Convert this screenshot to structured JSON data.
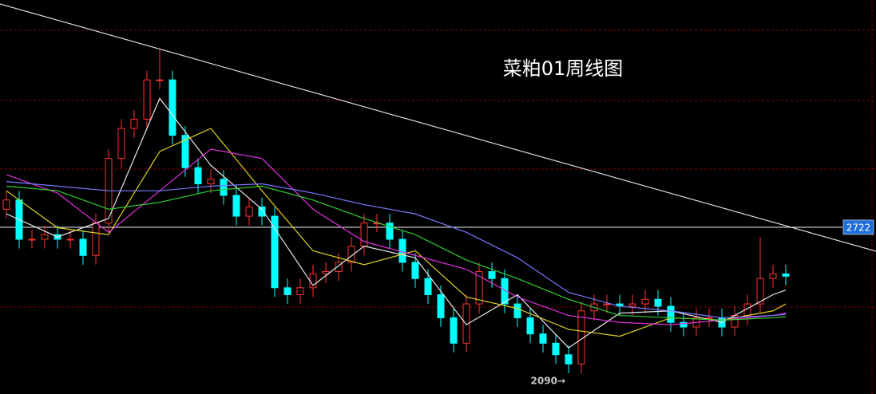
{
  "chart_data": {
    "type": "candlestick",
    "title": "菜粕01周线图",
    "ylim": [
      2000,
      3706
    ],
    "up_color": "#ff3232",
    "down_color": "#00ffff",
    "open": [
      2800,
      2840,
      2670,
      2670,
      2690,
      2670,
      2670,
      2600,
      2740,
      3020,
      3150,
      3190,
      3360,
      3360,
      3120,
      2980,
      2910,
      2930,
      2860,
      2770,
      2810,
      2770,
      2460,
      2430,
      2460,
      2520,
      2530,
      2570,
      2640,
      2740,
      2740,
      2670,
      2570,
      2500,
      2430,
      2330,
      2220,
      2390,
      2530,
      2500,
      2390,
      2330,
      2260,
      2220,
      2170,
      2130,
      2360,
      2390,
      2390,
      2380,
      2390,
      2410,
      2380,
      2310,
      2290,
      2330,
      2330,
      2290,
      2340,
      2390,
      2500,
      2520
    ],
    "high": [
      2880,
      2880,
      2710,
      2730,
      2730,
      2710,
      2710,
      2780,
      3060,
      3190,
      3230,
      3400,
      3490,
      3400,
      3160,
      3020,
      2970,
      2970,
      2900,
      2850,
      2850,
      2810,
      2500,
      2500,
      2560,
      2570,
      2610,
      2680,
      2780,
      2780,
      2780,
      2710,
      2610,
      2540,
      2470,
      2370,
      2430,
      2570,
      2570,
      2540,
      2430,
      2370,
      2300,
      2260,
      2210,
      2400,
      2430,
      2430,
      2430,
      2430,
      2450,
      2450,
      2420,
      2350,
      2370,
      2370,
      2370,
      2380,
      2430,
      2680,
      2560,
      2560
    ],
    "low": [
      2760,
      2630,
      2630,
      2630,
      2630,
      2630,
      2560,
      2560,
      2700,
      2980,
      3110,
      3150,
      3320,
      3080,
      2940,
      2870,
      2870,
      2820,
      2730,
      2730,
      2730,
      2420,
      2390,
      2390,
      2420,
      2480,
      2490,
      2530,
      2600,
      2700,
      2630,
      2530,
      2460,
      2390,
      2290,
      2180,
      2180,
      2350,
      2460,
      2350,
      2290,
      2220,
      2180,
      2130,
      2090,
      2090,
      2320,
      2350,
      2340,
      2340,
      2350,
      2340,
      2270,
      2250,
      2250,
      2290,
      2250,
      2250,
      2300,
      2350,
      2460,
      2470
    ],
    "close": [
      2840,
      2670,
      2670,
      2690,
      2670,
      2670,
      2600,
      2740,
      3020,
      3150,
      3190,
      3360,
      3360,
      3120,
      2980,
      2910,
      2930,
      2860,
      2770,
      2810,
      2770,
      2460,
      2430,
      2460,
      2520,
      2530,
      2570,
      2640,
      2740,
      2740,
      2670,
      2570,
      2500,
      2430,
      2330,
      2220,
      2390,
      2530,
      2500,
      2390,
      2330,
      2260,
      2220,
      2170,
      2130,
      2360,
      2390,
      2390,
      2380,
      2390,
      2410,
      2380,
      2310,
      2290,
      2330,
      2330,
      2290,
      2340,
      2390,
      2500,
      2520,
      2510
    ],
    "series": [
      {
        "color": "#e8e8e8",
        "x": [
          0,
          4,
          8,
          12,
          16,
          20,
          24,
          28,
          32,
          36,
          40,
          44,
          48,
          52,
          56,
          60,
          61
        ],
        "values": [
          2780,
          2680,
          2760,
          3280,
          2990,
          2800,
          2470,
          2640,
          2590,
          2300,
          2430,
          2200,
          2350,
          2360,
          2310,
          2430,
          2450
        ]
      },
      {
        "color": "#e0d020",
        "x": [
          0,
          4,
          8,
          12,
          16,
          20,
          24,
          28,
          32,
          36,
          40,
          44,
          48,
          52,
          56,
          60,
          61
        ],
        "values": [
          2880,
          2720,
          2690,
          3050,
          3150,
          2880,
          2620,
          2560,
          2620,
          2420,
          2370,
          2280,
          2250,
          2330,
          2320,
          2360,
          2390
        ]
      },
      {
        "color": "#e030e0",
        "x": [
          0,
          4,
          8,
          12,
          16,
          20,
          24,
          28,
          32,
          36,
          40,
          44,
          48,
          52,
          56,
          60,
          61
        ],
        "values": [
          2950,
          2870,
          2700,
          2880,
          3060,
          3020,
          2800,
          2660,
          2600,
          2540,
          2420,
          2340,
          2310,
          2300,
          2320,
          2340,
          2350
        ]
      },
      {
        "color": "#30d030",
        "x": [
          0,
          4,
          8,
          12,
          16,
          20,
          24,
          28,
          32,
          36,
          40,
          44,
          48,
          52,
          56,
          60,
          61
        ],
        "values": [
          2900,
          2880,
          2800,
          2830,
          2880,
          2900,
          2840,
          2760,
          2690,
          2580,
          2500,
          2410,
          2340,
          2330,
          2320,
          2330,
          2335
        ]
      },
      {
        "color": "#7878ff",
        "x": [
          0,
          4,
          8,
          12,
          16,
          20,
          24,
          28,
          32,
          36,
          40,
          44,
          48,
          52,
          56,
          60,
          61
        ],
        "values": [
          2920,
          2900,
          2880,
          2880,
          2900,
          2910,
          2870,
          2820,
          2780,
          2700,
          2590,
          2440,
          2380,
          2360,
          2330,
          2340,
          2345
        ]
      }
    ],
    "price_line": 2722,
    "low_annotation": {
      "text": "2090→",
      "value": 2090,
      "index": 44
    }
  }
}
